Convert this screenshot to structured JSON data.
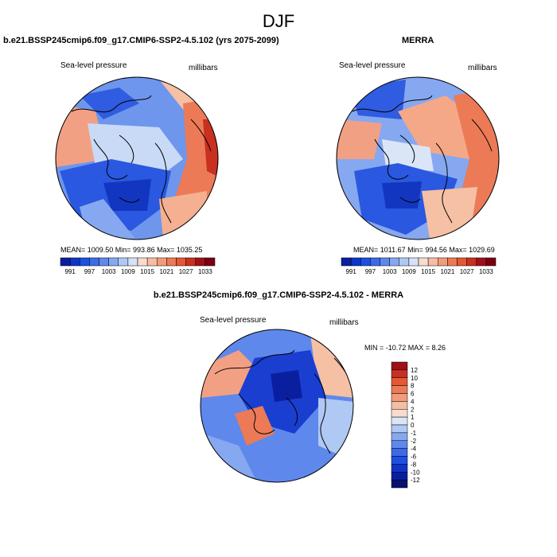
{
  "page": {
    "title": "DJF"
  },
  "panels": {
    "model": {
      "title": "b.e21.BSSP245cmip6.f09_g17.CMIP6-SSP2-4.5.102 (yrs 2075-2099)",
      "variable": "Sea-level pressure",
      "units": "millibars",
      "stats": "MEAN= 1009.50  Min= 993.86  Max= 1035.25"
    },
    "obs": {
      "title": "MERRA",
      "variable": "Sea-level pressure",
      "units": "millibars",
      "stats": "MEAN= 1011.67  Min= 994.56  Max= 1029.69"
    },
    "diff": {
      "title": "b.e21.BSSP245cmip6.f09_g17.CMIP6-SSP2-4.5.102 - MERRA",
      "variable": "Sea-level pressure",
      "units": "millibars",
      "stats": "MIN = -10.72 MAX =   8.26"
    }
  },
  "colorbars": {
    "field": {
      "colors": [
        "#0a1fa0",
        "#0d35c8",
        "#1c50e4",
        "#3c6ae8",
        "#5e88ec",
        "#86a8f0",
        "#b0c8f4",
        "#d6e2f8",
        "#f8dcd0",
        "#f6bca4",
        "#f29c7c",
        "#ec7a56",
        "#e45834",
        "#c83020",
        "#a0101a",
        "#7a0010"
      ],
      "labels": [
        "991",
        "997",
        "1003",
        "1009",
        "1015",
        "1021",
        "1027",
        "1033"
      ]
    },
    "diff": {
      "colors": [
        "#0a1fa0",
        "#0d35c8",
        "#1c50e4",
        "#3c6ae8",
        "#5e88ec",
        "#86a8f0",
        "#b0c8f4",
        "#dae6f8",
        "#f8dcd0",
        "#f6bca4",
        "#f29c7c",
        "#ec7a56",
        "#e45834",
        "#c83020",
        "#a0101a"
      ],
      "labels": [
        "12",
        "10",
        "8",
        "6",
        "4",
        "2",
        "1",
        "0",
        "-1",
        "-2",
        "-4",
        "-6",
        "-8",
        "-10",
        "-12"
      ]
    }
  },
  "colors": {
    "low": "#1a45d8",
    "mid_low": "#7fa4ee",
    "neutral": "#dde8f8",
    "mid_high": "#f4a080",
    "high": "#e0502c",
    "coast": "#000000"
  }
}
